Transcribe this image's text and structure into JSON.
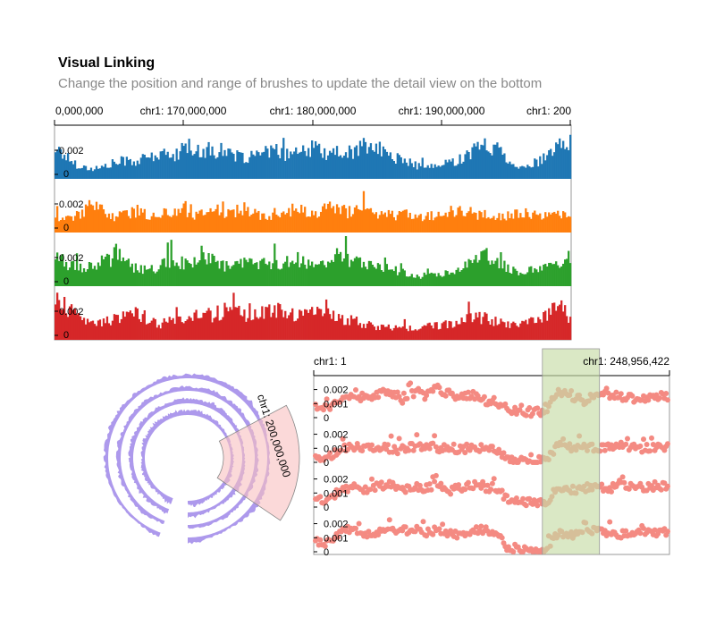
{
  "header": {
    "title": "Visual Linking",
    "subtitle": "Change the position and range of brushes to update the detail view on the bottom"
  },
  "colors": {
    "track_colors": [
      "#1f77b4",
      "#ff7f0e",
      "#2ca02c",
      "#d62728"
    ],
    "circular_fill": "#ad99ec",
    "circular_brush": "#f8c0c0",
    "point_color": "#f48a82",
    "linear_brush": "#c6dca6"
  },
  "chart_data": [
    {
      "type": "bar",
      "name": "overview-linear-tracks",
      "x_axis_ticks": [
        "0,000,000",
        "chr1: 170,000,000",
        "chr1: 180,000,000",
        "chr1: 190,000,000",
        "chr1: 200"
      ],
      "x_domain": [
        160000000,
        200000000
      ],
      "y_tick_labels": [
        "0.002",
        "0"
      ],
      "ylim": [
        0,
        0.0035
      ],
      "series": [
        {
          "values": [
            0.0022,
            0.0015,
            0.0009,
            0.0007,
            0.0008,
            0.0011,
            0.0013,
            0.0012,
            0.0015,
            0.0017,
            0.0016,
            0.0019,
            0.0021,
            0.002,
            0.0018,
            0.0016,
            0.0015,
            0.0016,
            0.0018,
            0.0019,
            0.0017,
            0.0018,
            0.0021,
            0.0019,
            0.0016,
            0.0018,
            0.0022,
            0.0023,
            0.0019,
            0.0015,
            0.0012,
            0.0009,
            0.0008,
            0.0009,
            0.0012,
            0.0016,
            0.0021,
            0.0024,
            0.002,
            0.0012,
            0.0007,
            0.0011,
            0.0015,
            0.0022,
            0.0028
          ]
        },
        {
          "values": [
            0.0012,
            0.0009,
            0.0013,
            0.0018,
            0.0016,
            0.0011,
            0.0013,
            0.0015,
            0.0012,
            0.0013,
            0.0014,
            0.0016,
            0.0012,
            0.0015,
            0.0013,
            0.0014,
            0.0017,
            0.0013,
            0.0011,
            0.0014,
            0.0016,
            0.0015,
            0.0012,
            0.0016,
            0.0018,
            0.0014,
            0.0017,
            0.0015,
            0.0013,
            0.0012,
            0.0014,
            0.0011,
            0.0012,
            0.0013,
            0.0015,
            0.0014,
            0.0012,
            0.0013,
            0.0011,
            0.0012,
            0.0014,
            0.0012,
            0.0011,
            0.0012,
            0.0012
          ]
        },
        {
          "values": [
            0.0021,
            0.0016,
            0.0013,
            0.0015,
            0.0017,
            0.0019,
            0.0016,
            0.0012,
            0.0011,
            0.0014,
            0.0018,
            0.0016,
            0.0017,
            0.0019,
            0.0015,
            0.0013,
            0.0016,
            0.0017,
            0.0015,
            0.0016,
            0.0019,
            0.0017,
            0.0014,
            0.0018,
            0.0021,
            0.0019,
            0.0016,
            0.0015,
            0.0013,
            0.0011,
            0.0009,
            0.0007,
            0.0008,
            0.0009,
            0.0011,
            0.0015,
            0.0019,
            0.0021,
            0.0016,
            0.0011,
            0.0009,
            0.0012,
            0.0015,
            0.0018,
            0.0022
          ]
        },
        {
          "values": [
            0.0027,
            0.0022,
            0.0016,
            0.0012,
            0.0013,
            0.0015,
            0.0017,
            0.0019,
            0.0014,
            0.0011,
            0.0013,
            0.0015,
            0.0018,
            0.0016,
            0.0019,
            0.0021,
            0.0018,
            0.0017,
            0.0019,
            0.002,
            0.0018,
            0.0017,
            0.002,
            0.0019,
            0.0016,
            0.0014,
            0.0012,
            0.001,
            0.0009,
            0.0008,
            0.0008,
            0.0009,
            0.0009,
            0.001,
            0.0012,
            0.0014,
            0.0016,
            0.0015,
            0.0012,
            0.0011,
            0.0012,
            0.0014,
            0.0016,
            0.0025,
            0.0014
          ]
        }
      ]
    },
    {
      "type": "area",
      "name": "circular-overview",
      "brush_label": "chr1: 200,000,000",
      "series_count": 4
    },
    {
      "type": "scatter",
      "name": "detail-view",
      "x_axis_ticks": [
        "chr1: 1",
        "chr1: 248,956,422"
      ],
      "x_domain": [
        1,
        248956422
      ],
      "brush_domain": [
        160000000,
        200000000
      ],
      "y_tick_labels": [
        "0.002",
        "0.001",
        "0"
      ],
      "ylim": [
        0,
        0.0028
      ],
      "series": [
        {
          "values": [
            0.0009,
            0.0007,
            0.0013,
            0.0016,
            0.0014,
            0.0017,
            0.0019,
            0.0012,
            0.0018,
            0.0016,
            0.0021,
            0.0017,
            0.0014,
            0.0016,
            0.0012,
            0.0011,
            0.0005,
            0.0004,
            0.0004,
            0.0005,
            0.0019,
            0.0016,
            0.0012,
            0.0014,
            0.0016,
            0.0015,
            0.0014,
            0.0013,
            0.0016,
            0.0015
          ]
        },
        {
          "values": [
            0.0004,
            0.0003,
            0.0009,
            0.0011,
            0.001,
            0.0011,
            0.001,
            0.0009,
            0.0011,
            0.0012,
            0.001,
            0.0011,
            0.0009,
            0.0011,
            0.001,
            0.0008,
            0.0001,
            0.0001,
            0.0001,
            0.0001,
            0.0012,
            0.0011,
            0.001,
            0.0011,
            0.001,
            0.0012,
            0.0011,
            0.001,
            0.0011,
            0.0011
          ]
        },
        {
          "values": [
            0.0005,
            0.0004,
            0.0012,
            0.0014,
            0.0013,
            0.0014,
            0.0016,
            0.0012,
            0.0015,
            0.0013,
            0.0016,
            0.0012,
            0.0014,
            0.0016,
            0.0013,
            0.0012,
            0.0004,
            0.0003,
            0.0003,
            0.0004,
            0.0014,
            0.0013,
            0.0012,
            0.0016,
            0.0013,
            0.0015,
            0.0014,
            0.0013,
            0.0015,
            0.0014
          ]
        },
        {
          "values": [
            0.0007,
            0.0006,
            0.0014,
            0.0016,
            0.0012,
            0.0013,
            0.0015,
            0.0014,
            0.0017,
            0.0013,
            0.0015,
            0.0014,
            0.0012,
            0.0015,
            0.0016,
            0.0013,
            0.0001,
            0.0001,
            0.0001,
            0.0001,
            0.0014,
            0.0011,
            0.0013,
            0.0015,
            0.0014,
            0.0013,
            0.0012,
            0.0014,
            0.0013,
            0.0015
          ]
        }
      ]
    }
  ]
}
